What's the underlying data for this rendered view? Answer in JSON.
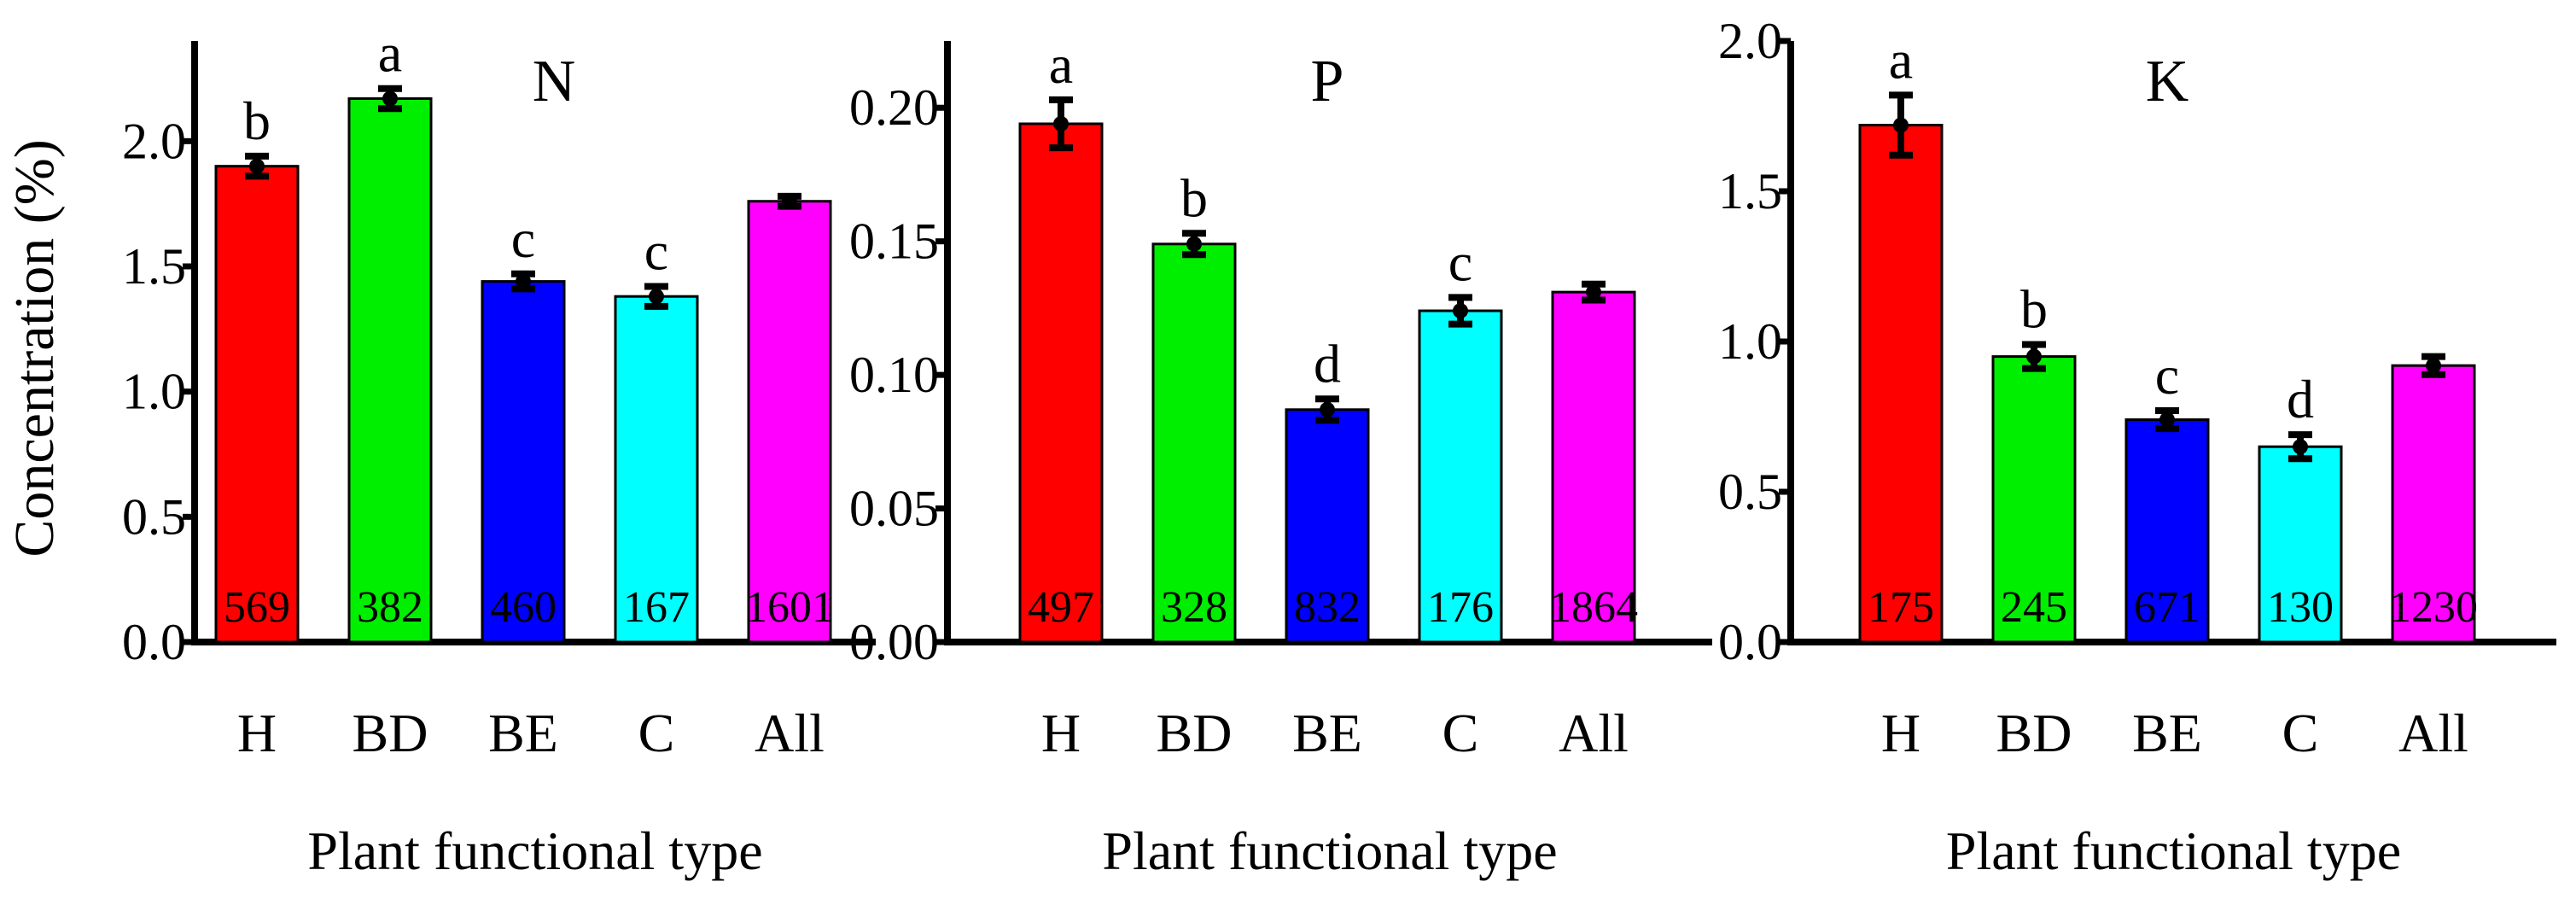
{
  "figure": {
    "ylabel": "Concentration (%)"
  },
  "chart_data": [
    {
      "type": "bar",
      "title": "N",
      "xlabel": "Plant functional type",
      "ylabel": "Concentration (%)",
      "ylim": [
        0,
        2.4
      ],
      "yticks": [
        "0.0",
        "0.5",
        "1.0",
        "1.5",
        "2.0"
      ],
      "categories": [
        "H",
        "BD",
        "BE",
        "C",
        "All"
      ],
      "values": [
        1.9,
        2.17,
        1.44,
        1.38,
        1.76
      ],
      "errors": [
        0.04,
        0.04,
        0.03,
        0.04,
        0.02
      ],
      "letters": [
        "b",
        "a",
        "c",
        "c",
        ""
      ],
      "counts": [
        "569",
        "382",
        "460",
        "167",
        "1601"
      ],
      "colors": [
        "#ff0000",
        "#00ee00",
        "#0000ff",
        "#00ffff",
        "#ff00ff"
      ]
    },
    {
      "type": "bar",
      "title": "P",
      "xlabel": "Plant functional type",
      "ylabel": "",
      "ylim": [
        0,
        0.225
      ],
      "yticks": [
        "0.00",
        "0.05",
        "0.10",
        "0.15",
        "0.20"
      ],
      "categories": [
        "H",
        "BD",
        "BE",
        "C",
        "All"
      ],
      "values": [
        0.194,
        0.149,
        0.087,
        0.124,
        0.131
      ],
      "errors": [
        0.009,
        0.004,
        0.004,
        0.005,
        0.003
      ],
      "letters": [
        "a",
        "b",
        "d",
        "c",
        ""
      ],
      "counts": [
        "497",
        "328",
        "832",
        "176",
        "1864"
      ],
      "colors": [
        "#ff0000",
        "#00ee00",
        "#0000ff",
        "#00ffff",
        "#ff00ff"
      ]
    },
    {
      "type": "bar",
      "title": "K",
      "xlabel": "Plant functional type",
      "ylabel": "",
      "ylim": [
        0,
        2.0
      ],
      "yticks": [
        "0.0",
        "0.5",
        "1.0",
        "1.5",
        "2.0"
      ],
      "categories": [
        "H",
        "BD",
        "BE",
        "C",
        "All"
      ],
      "values": [
        1.72,
        0.95,
        0.74,
        0.65,
        0.92
      ],
      "errors": [
        0.1,
        0.04,
        0.03,
        0.04,
        0.03
      ],
      "letters": [
        "a",
        "b",
        "c",
        "d",
        ""
      ],
      "counts": [
        "175",
        "245",
        "671",
        "130",
        "1230"
      ],
      "colors": [
        "#ff0000",
        "#00ee00",
        "#0000ff",
        "#00ffff",
        "#ff00ff"
      ]
    }
  ]
}
